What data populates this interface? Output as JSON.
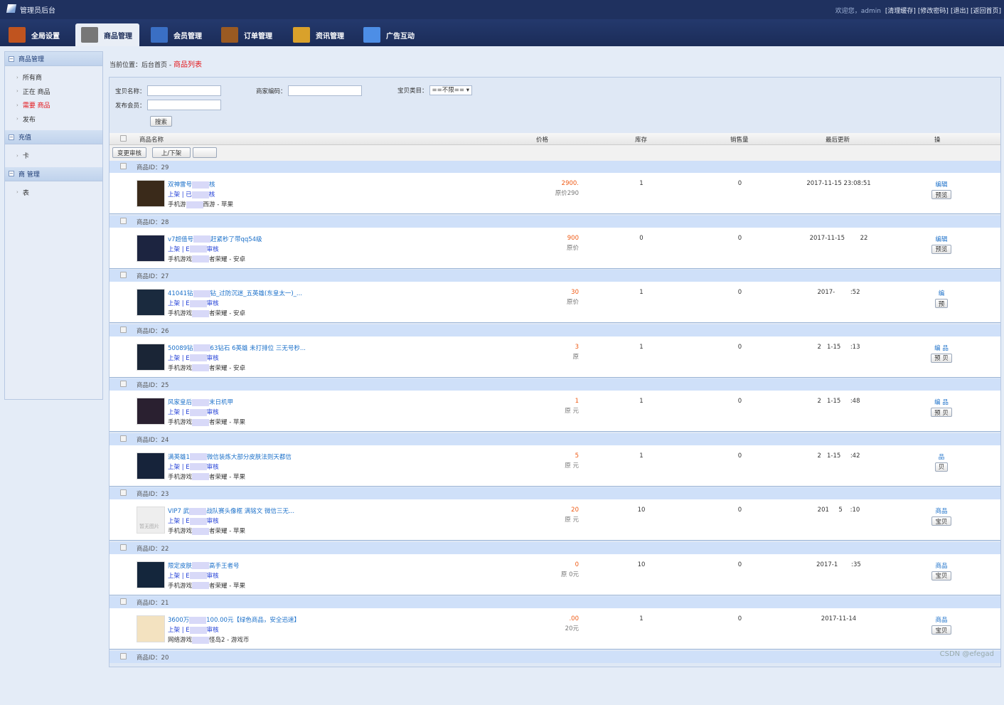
{
  "header": {
    "title": "管理员后台",
    "welcome": "欢迎您，admin",
    "links": [
      "[清理缓存]",
      "[修改密码]",
      "[退出]",
      "[返回首页]"
    ]
  },
  "nav": [
    {
      "label": "全局设置",
      "icon": "settings-icon",
      "color": "#c0541f"
    },
    {
      "label": "商品管理",
      "icon": "goods-icon",
      "color": "#777",
      "active": true
    },
    {
      "label": "会员管理",
      "icon": "members-icon",
      "color": "#3a6fc4"
    },
    {
      "label": "订单管理",
      "icon": "orders-icon",
      "color": "#9a5a22"
    },
    {
      "label": "资讯管理",
      "icon": "news-icon",
      "color": "#d9a12b"
    },
    {
      "label": "广告互动",
      "icon": "ads-icon",
      "color": "#4d8ee6"
    }
  ],
  "sidebar": [
    {
      "title": "商品管理",
      "items": [
        {
          "label": "所有商"
        },
        {
          "label": "正在 商品"
        },
        {
          "label": "需要 商品",
          "red": true
        },
        {
          "label": "发布"
        }
      ]
    },
    {
      "title": "充值",
      "items": [
        {
          "label": "卡 "
        }
      ]
    },
    {
      "title": "商 管理",
      "items": [
        {
          "label": "表"
        }
      ]
    }
  ],
  "breadcrumb": {
    "prefix": "当前位置：后台首页 - ",
    "current": "商品列表"
  },
  "filters": {
    "name_label": "宝贝名称：",
    "code_label": "商家编码：",
    "category_label": "宝贝类目：",
    "category_value": "==不限==",
    "member_label": "发布会员：",
    "search": "搜索"
  },
  "table": {
    "columns": [
      "商品名称",
      "价格",
      "库存",
      "销售量",
      "最后更新",
      "操"
    ],
    "tools": [
      "变更审核",
      "上/下架",
      ""
    ]
  },
  "rows": [
    {
      "id": "商品ID：29",
      "t1": "双神雷号",
      "t2": "核",
      "s1": "上架 | 已",
      "s2": "核",
      "c1": "手机游",
      "c2": "西游 - 苹果",
      "price": "2900.",
      "orig": "原价290",
      "stock": "1",
      "sales": "0",
      "date": "2017-11-15 23:08:51",
      "edit": "编辑",
      "preview": "预览",
      "thumb": "#3a2a1a"
    },
    {
      "id": "商品ID：28",
      "t1": "v7超值号",
      "t2": "赶紧秒了带qq54级",
      "s1": "上架 | E",
      "s2": "审核",
      "c1": "手机游戏",
      "c2": "者荣耀 - 安卓",
      "price": "900",
      "orig": "原价",
      "stock": "0",
      "sales": "0",
      "date": "2017-11-15        22",
      "edit": "编辑",
      "preview": "预览",
      "thumb": "#1c2440"
    },
    {
      "id": "商品ID：27",
      "t1": "41041钻",
      "t2": "钻_过防沉迷_五英雄(东皇太一)_...",
      "s1": "上架 | E",
      "s2": "审核",
      "c1": "手机游戏",
      "c2": "者荣耀 - 安卓",
      "price": "30",
      "orig": "原价",
      "stock": "1",
      "sales": "0",
      "date": "2017-        :52",
      "edit": "编",
      "preview": "预",
      "thumb": "#1a2a3e"
    },
    {
      "id": "商品ID：26",
      "t1": "50089钻",
      "t2": "63钻石 6英雄 未打排位 三无号秒...",
      "s1": "上架 | E",
      "s2": "审核",
      "c1": "手机游戏",
      "c2": "者荣耀 - 安卓",
      "price": "3",
      "orig": "原",
      "stock": "1",
      "sales": "0",
      "date": "2   1-15     :13",
      "edit": "编   品",
      "preview": "预   贝",
      "thumb": "#1a2536"
    },
    {
      "id": "商品ID：25",
      "t1": "风家皇后",
      "t2": "末日机甲",
      "s1": "上架 | E",
      "s2": "审核",
      "c1": "手机游戏",
      "c2": "者荣耀 - 苹果",
      "price": "1",
      "orig": "原     元",
      "stock": "1",
      "sales": "0",
      "date": "2   1-15     :48",
      "edit": "编   品",
      "preview": "预   贝",
      "thumb": "#2a2030"
    },
    {
      "id": "商品ID：24",
      "t1": "满英雄1",
      "t2": "微信装炼大部分皮肤法则天都信",
      "s1": "上架 | E",
      "s2": "审核",
      "c1": "手机游戏",
      "c2": "者荣耀 - 苹果",
      "price": "5",
      "orig": "原     元",
      "stock": "1",
      "sales": "0",
      "date": "2   1-15     :42",
      "edit": "品",
      "preview": "贝",
      "thumb": "#16233a"
    },
    {
      "id": "商品ID：23",
      "t1": "VIP7 武",
      "t2": "战队赛头像框 满铭文 微信三无...",
      "s1": "上架 | E",
      "s2": "审核",
      "c1": "手机游戏",
      "c2": "者荣耀 - 苹果",
      "price": "20",
      "orig": "原     元",
      "stock": "10",
      "sales": "0",
      "date": "201     5    :10",
      "edit": "商品",
      "preview": "宝贝",
      "thumb": "#eeeeee",
      "placeholder": "暂无图片"
    },
    {
      "id": "商品ID：22",
      "t1": "限定皮肤",
      "t2": "高手王者号",
      "s1": "上架 | E",
      "s2": "审核",
      "c1": "手机游戏",
      "c2": "者荣耀 - 苹果",
      "price": "0",
      "orig": "原    0元",
      "stock": "10",
      "sales": "0",
      "date": "2017-1       :35",
      "edit": "商品",
      "preview": "宝贝",
      "thumb": "#14263c"
    },
    {
      "id": "商品ID：21",
      "t1": "3600万",
      "t2": "100.00元【绿色商品，安全迅速】",
      "s1": "上架 | E",
      "s2": "审核",
      "c1": "网络游戏",
      "c2": "怪岛2 - 游戏币",
      "price": ".00",
      "orig": "20元",
      "stock": "1",
      "sales": "0",
      "date": "2017-11-14",
      "edit": "商品",
      "preview": "宝贝",
      "thumb": "#f3e2c0"
    },
    {
      "id": "商品ID：20"
    }
  ],
  "watermark": "CSDN @efegad"
}
